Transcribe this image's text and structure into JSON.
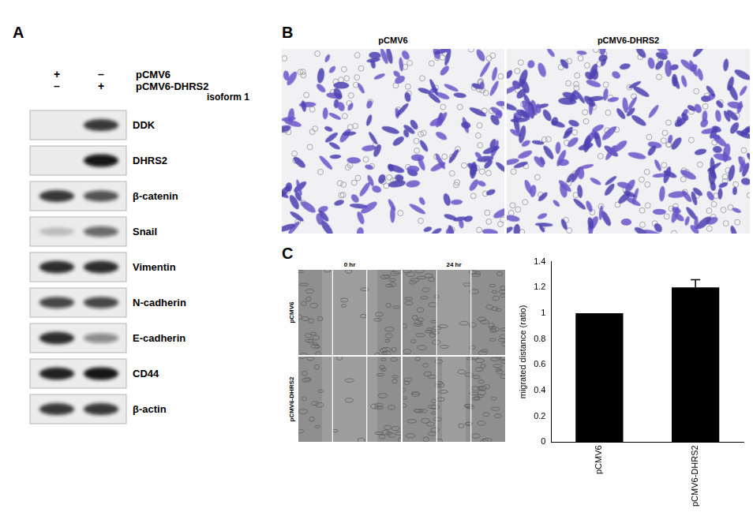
{
  "panel_A": {
    "label": "A",
    "conditions": [
      {
        "name": "pCMV6",
        "lanes": [
          "+",
          "–"
        ]
      },
      {
        "name": "pCMV6-DHRS2",
        "lanes": [
          "–",
          "+"
        ]
      }
    ],
    "condition_note": "isoform 1",
    "bands": [
      {
        "name": "DDK",
        "intensity": [
          0,
          0.85
        ]
      },
      {
        "name": "DHRS2",
        "intensity": [
          0,
          1
        ]
      },
      {
        "name": "β-catenin",
        "intensity": [
          0.85,
          0.7
        ]
      },
      {
        "name": "Snail",
        "intensity": [
          0.2,
          0.6
        ]
      },
      {
        "name": "Vimentin",
        "intensity": [
          0.9,
          0.9
        ]
      },
      {
        "name": "N-cadherin",
        "intensity": [
          0.75,
          0.75
        ]
      },
      {
        "name": "E-cadherin",
        "intensity": [
          0.9,
          0.45
        ]
      },
      {
        "name": "CD44",
        "intensity": [
          0.95,
          1
        ]
      },
      {
        "name": "β-actin",
        "intensity": [
          0.85,
          0.85
        ]
      }
    ]
  },
  "panel_B": {
    "label": "B",
    "images": [
      "pCMV6",
      "pCMV6-DHRS2"
    ]
  },
  "panel_C": {
    "label": "C",
    "time_points": [
      "0 hr",
      "24 hr"
    ],
    "rows": [
      "pCMV6",
      "pCMV6-DHRS2"
    ]
  },
  "chart_data": {
    "type": "bar",
    "categories": [
      "pCMV6",
      "pCMV6-DHRS2"
    ],
    "values": [
      1,
      1.2
    ],
    "errors": [
      0,
      0.06
    ],
    "y_label": "migrated distance (ratio)",
    "color": "#000000",
    "ylim": [
      0,
      1.4
    ],
    "yticks": [
      0,
      0.2,
      0.4,
      0.6,
      0.8,
      1,
      1.2,
      1.4
    ],
    "grid": false
  }
}
